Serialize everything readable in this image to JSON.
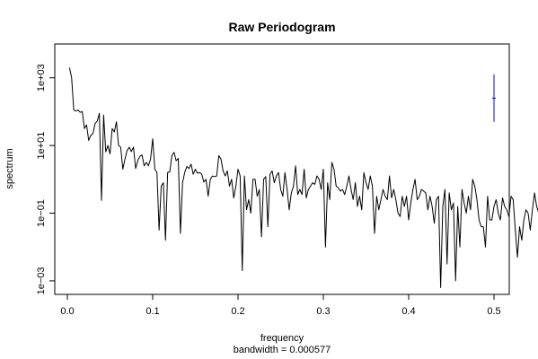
{
  "chart_data": {
    "type": "line",
    "title": "Raw Periodogram",
    "xlabel": "frequency",
    "sublabel": "bandwidth = 0.000577",
    "ylabel": "spectrum",
    "y_scale": "log",
    "xlim": [
      0.0,
      0.5
    ],
    "ylim_log10": [
      -3.4,
      4.0
    ],
    "x_ticks": [
      0.0,
      0.1,
      0.2,
      0.3,
      0.4,
      0.5
    ],
    "x_tick_labels": [
      "0.0",
      "0.1",
      "0.2",
      "0.3",
      "0.4",
      "0.5"
    ],
    "y_ticks_log10": [
      -3,
      -1,
      1,
      3
    ],
    "y_tick_labels": [
      "1e−03",
      "1e−01",
      "1e+01",
      "1e+03"
    ],
    "colors": {
      "series": "#000000",
      "ci_bar": "#0000ff"
    },
    "ci_bar": {
      "x": 0.5,
      "log10_low": 1.7,
      "log10_mid": 2.4,
      "log10_high": 3.1
    },
    "series": [
      {
        "x_start": 0.0025,
        "x_step": 0.0025,
        "log10_values": [
          3.3,
          3.0,
          2.05,
          2.02,
          2.05,
          1.98,
          2.0,
          1.5,
          1.61,
          1.15,
          1.3,
          1.35,
          1.65,
          1.72,
          1.95,
          -0.62,
          1.9,
          0.81,
          1.0,
          0.75,
          1.5,
          1.4,
          1.7,
          1.0,
          0.95,
          0.3,
          0.6,
          0.85,
          0.95,
          0.82,
          0.95,
          0.32,
          0.55,
          0.68,
          0.72,
          0.4,
          0.5,
          0.4,
          0.6,
          1.2,
          0.3,
          0.2,
          -1.5,
          -0.2,
          -0.1,
          -1.8,
          0.2,
          0.22,
          0.7,
          0.8,
          0.55,
          0.62,
          -1.6,
          -0.1,
          0.2,
          0.38,
          0.32,
          0.45,
          0.15,
          0.3,
          0.18,
          0.2,
          0.15,
          -0.08,
          0.0,
          -0.5,
          0.0,
          0.1,
          0.08,
          0.1,
          0.7,
          0.6,
          0.25,
          0.1,
          0.25,
          -0.2,
          0.0,
          -0.55,
          -0.2,
          0.3,
          0.1,
          -2.7,
          0.1,
          -0.9,
          -0.6,
          -1.0,
          0.0,
          0.0,
          -0.5,
          -0.3,
          -1.7,
          0.0,
          0.08,
          -1.4,
          0.15,
          0.25,
          -0.1,
          0.1,
          0.2,
          -0.3,
          -0.5,
          0.2,
          -0.3,
          -0.9,
          -0.4,
          -0.2,
          0.4,
          -0.45,
          -0.3,
          -0.45,
          0.3,
          -0.55,
          -0.3,
          -0.2,
          -0.1,
          -0.15,
          0.1,
          0.0,
          -0.3,
          0.3,
          -2.0,
          -0.1,
          -0.6,
          0.5,
          0.3,
          -0.2,
          -0.25,
          -0.35,
          -0.3,
          -0.45,
          -0.2,
          0.1,
          -0.3,
          -0.6,
          -0.1,
          -0.8,
          -0.5,
          -0.9,
          0.2,
          -0.1,
          -0.3,
          0.1,
          -0.2,
          -1.6,
          -0.5,
          -0.9,
          -0.6,
          -0.3,
          -0.5,
          -0.6,
          0.1,
          -0.55,
          -0.3,
          -0.6,
          -1.0,
          -1.1,
          -0.5,
          -0.8,
          -0.5,
          -1.2,
          -0.7,
          -0.3,
          0.0,
          -0.6,
          -0.5,
          -0.3,
          -0.35,
          -0.4,
          -0.9,
          -0.5,
          -0.8,
          -1.3,
          -0.6,
          -0.5,
          -3.2,
          -0.8,
          -0.3,
          -2.5,
          -0.4,
          -0.9,
          -0.7,
          -3.0,
          -0.8,
          -2.0,
          -0.3,
          -0.7,
          -1.0,
          -0.5,
          -0.9,
          0.0,
          -0.2,
          -0.6,
          -1.2,
          -1.4,
          -1.4,
          -2.0,
          -0.5,
          -1.2,
          -1.2,
          -0.8,
          -0.6,
          -1.0,
          -1.2,
          -0.55,
          -0.8,
          -0.9,
          -1.1,
          -0.5,
          -0.6,
          -1.5,
          -2.3,
          -1.4,
          -1.8,
          -1.2,
          -0.9,
          -1.0,
          -1.5,
          -0.9,
          -0.4,
          -0.8,
          -1.0,
          -1.0,
          -0.95
        ]
      }
    ]
  }
}
